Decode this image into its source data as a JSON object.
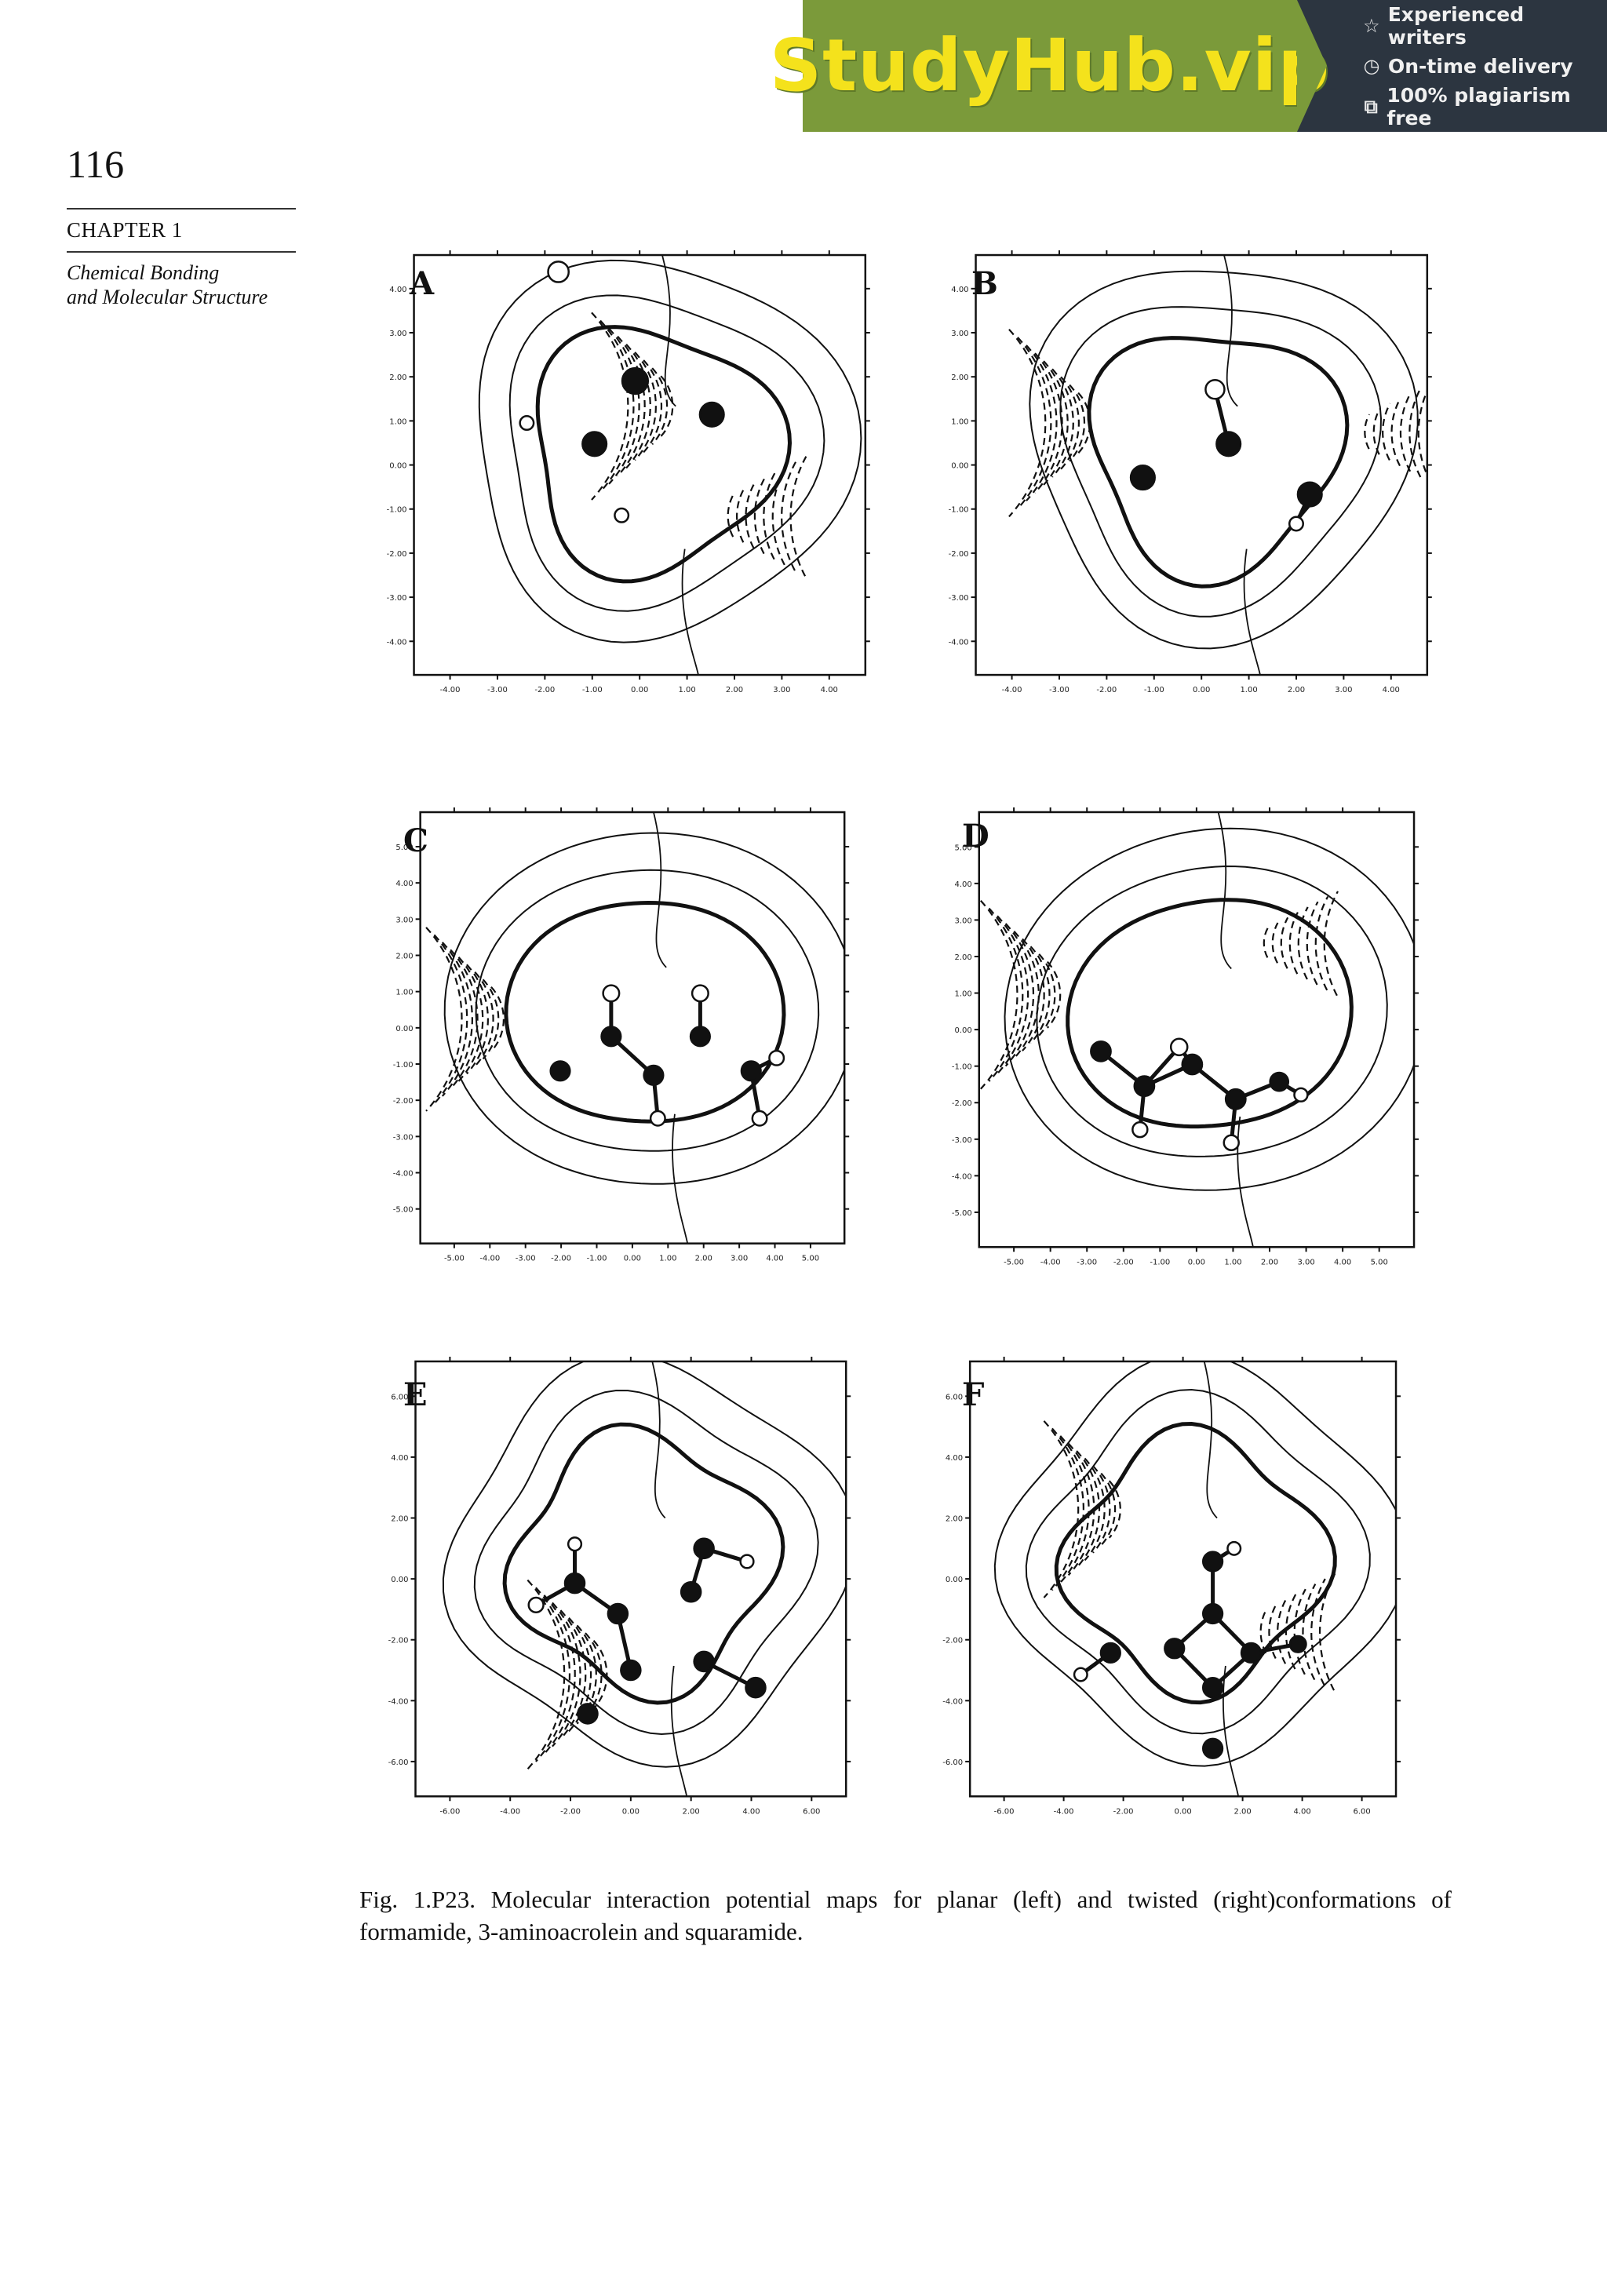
{
  "banner": {
    "logo": "StudyHub.vip",
    "features": [
      {
        "icon": "star-icon",
        "glyph": "☆",
        "text": "Experienced writers"
      },
      {
        "icon": "clock-icon",
        "glyph": "◷",
        "text": "On-time delivery"
      },
      {
        "icon": "copy-icon",
        "glyph": "⧉",
        "text": "100% plagiarism free"
      }
    ],
    "colors": {
      "logo_bg": "#7b9a3a",
      "logo_text": "#f4e21c",
      "features_bg": "#2c3540"
    }
  },
  "header": {
    "page_number": "116",
    "chapter": "CHAPTER 1",
    "running_title_line1": "Chemical Bonding",
    "running_title_line2": "and Molecular Structure"
  },
  "figure": {
    "panels": [
      {
        "label": "A",
        "molecule": "formamide",
        "conformation": "planar",
        "y_ticks": [
          "4.00",
          "3.00",
          "2.00",
          "1.00",
          "0.00",
          "-1.00",
          "-2.00",
          "-3.00",
          "-4.00"
        ],
        "x_ticks": [
          "-4.00",
          "-3.00",
          "-2.00",
          "-1.00",
          "0.00",
          "1.00",
          "2.00",
          "3.00",
          "4.00"
        ]
      },
      {
        "label": "B",
        "molecule": "formamide",
        "conformation": "twisted",
        "y_ticks": [
          "4.00",
          "3.00",
          "2.00",
          "1.00",
          "0.00",
          "-1.00",
          "-2.00",
          "-3.00",
          "-4.00"
        ],
        "x_ticks": [
          "-4.00",
          "-3.00",
          "-2.00",
          "-1.00",
          "0.00",
          "1.00",
          "2.00",
          "3.00",
          "4.00"
        ]
      },
      {
        "label": "C",
        "molecule": "3-aminoacrolein",
        "conformation": "planar",
        "y_ticks": [
          "5.00",
          "4.00",
          "3.00",
          "2.00",
          "1.00",
          "0.00",
          "-1.00",
          "-2.00",
          "-3.00",
          "-4.00",
          "-5.00"
        ],
        "x_ticks": [
          "-5.00",
          "-4.00",
          "-3.00",
          "-2.00",
          "-1.00",
          "0.00",
          "1.00",
          "2.00",
          "3.00",
          "4.00",
          "5.00"
        ]
      },
      {
        "label": "D",
        "molecule": "3-aminoacrolein",
        "conformation": "twisted",
        "y_ticks": [
          "5.00",
          "4.00",
          "3.00",
          "2.00",
          "1.00",
          "0.00",
          "-1.00",
          "-2.00",
          "-3.00",
          "-4.00",
          "-5.00"
        ],
        "x_ticks": [
          "-5.00",
          "-4.00",
          "-3.00",
          "-2.00",
          "-1.00",
          "0.00",
          "1.00",
          "2.00",
          "3.00",
          "4.00",
          "5.00"
        ]
      },
      {
        "label": "E",
        "molecule": "squaramide",
        "conformation": "planar",
        "y_ticks": [
          "6.00",
          "4.00",
          "2.00",
          "0.00",
          "-2.00",
          "-4.00",
          "-6.00"
        ],
        "x_ticks": [
          "-6.00",
          "-4.00",
          "-2.00",
          "0.00",
          "2.00",
          "4.00",
          "6.00"
        ]
      },
      {
        "label": "F",
        "molecule": "squaramide",
        "conformation": "twisted",
        "y_ticks": [
          "6.00",
          "4.00",
          "2.00",
          "0.00",
          "-2.00",
          "-4.00",
          "-6.00"
        ],
        "x_ticks": [
          "-6.00",
          "-4.00",
          "-2.00",
          "0.00",
          "2.00",
          "4.00",
          "6.00"
        ]
      }
    ],
    "caption": "Fig. 1.P23. Molecular interaction potential maps for planar (left) and twisted (right)conformations of formamide, 3-aminoacrolein and squaramide."
  }
}
